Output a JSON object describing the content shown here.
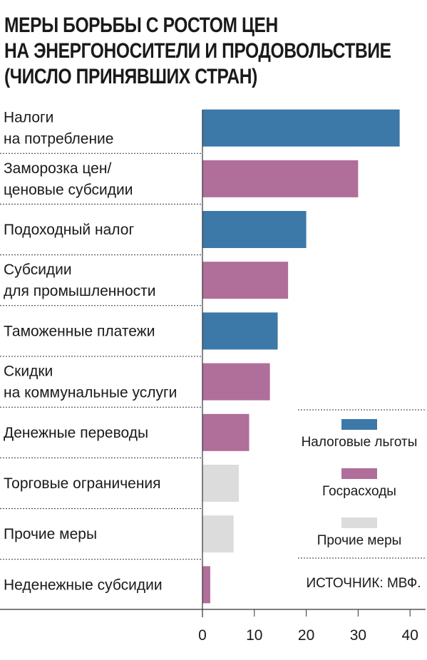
{
  "title_lines": [
    "МЕРЫ БОРЬБЫ С РОСТОМ ЦЕН",
    "НА ЭНЕРГОНОСИТЕЛИ И ПРОДОВОЛЬСТВИЕ",
    "(ЧИСЛО ПРИНЯВШИХ СТРАН)"
  ],
  "source": "ИСТОЧНИК: МВФ.",
  "colors": {
    "tax": "#3c78a8",
    "spending": "#b06e9a",
    "other": "#dcdcdc"
  },
  "chart_data": {
    "type": "bar",
    "orientation": "horizontal",
    "categories": [
      [
        "Налоги",
        "на потребление"
      ],
      [
        "Заморозка цен/",
        "ценовые субсидии"
      ],
      [
        "Подоходный налог"
      ],
      [
        "Субсидии",
        "для промышленности"
      ],
      [
        "Таможенные платежи"
      ],
      [
        "Скидки",
        "на коммунальные услуги"
      ],
      [
        "Денежные переводы"
      ],
      [
        "Торговые ограничения"
      ],
      [
        "Прочие меры"
      ],
      [
        "Неденежные субсидии"
      ]
    ],
    "values": [
      38,
      30,
      20,
      16.5,
      14.5,
      13,
      9,
      7,
      6,
      1.5
    ],
    "groups": [
      "tax",
      "spending",
      "tax",
      "spending",
      "tax",
      "spending",
      "spending",
      "other",
      "other",
      "spending"
    ],
    "legend": [
      {
        "key": "tax",
        "label": "Налоговые льготы"
      },
      {
        "key": "spending",
        "label": "Госрасходы"
      },
      {
        "key": "other",
        "label": "Прочие меры"
      }
    ],
    "legend_position": "bottom-right",
    "xlim": [
      0,
      40
    ],
    "xticks": [
      "0",
      "10",
      "20",
      "30",
      "40"
    ],
    "grid": false
  }
}
